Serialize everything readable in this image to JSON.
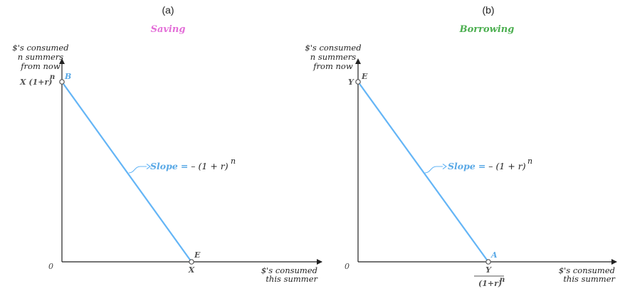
{
  "colors": {
    "saving_title": "#e36fd8",
    "borrowing_title": "#4caf50",
    "budget_line": "#64b5f6",
    "point_label": "#5aa9e6",
    "slope_label": "#5aa9e6",
    "axis": "#222222",
    "label_gray": "#555555"
  },
  "panels": [
    {
      "letter": "(a)",
      "title": "Saving",
      "title_color_key": "saving_title",
      "y_axis_label": [
        "$'s consumed",
        "n summers",
        "from now"
      ],
      "x_axis_label": [
        "$'s consumed",
        "this summer"
      ],
      "origin": "0",
      "y_intercept_label": "X (1+r)",
      "y_intercept_sup": "n",
      "x_intercept_label": "X",
      "y_intercept_point": "B",
      "x_intercept_point": "E",
      "slope_word": "Slope",
      "slope_eq": "=",
      "slope_expr": "– (1 + r)",
      "slope_sup": "n"
    },
    {
      "letter": "(b)",
      "title": "Borrowing",
      "title_color_key": "borrowing_title",
      "y_axis_label": [
        "$'s consumed",
        "n summers",
        "from now"
      ],
      "x_axis_label": [
        "$'s consumed",
        "this summer"
      ],
      "origin": "0",
      "y_intercept_label": "Y",
      "x_intercept_numerator": "Y",
      "x_intercept_denominator": "(1+r)",
      "x_intercept_sup": "n",
      "y_intercept_point": "E",
      "x_intercept_point": "A",
      "slope_word": "Slope",
      "slope_eq": "=",
      "slope_expr": "– (1 + r)",
      "slope_sup": "n"
    }
  ]
}
